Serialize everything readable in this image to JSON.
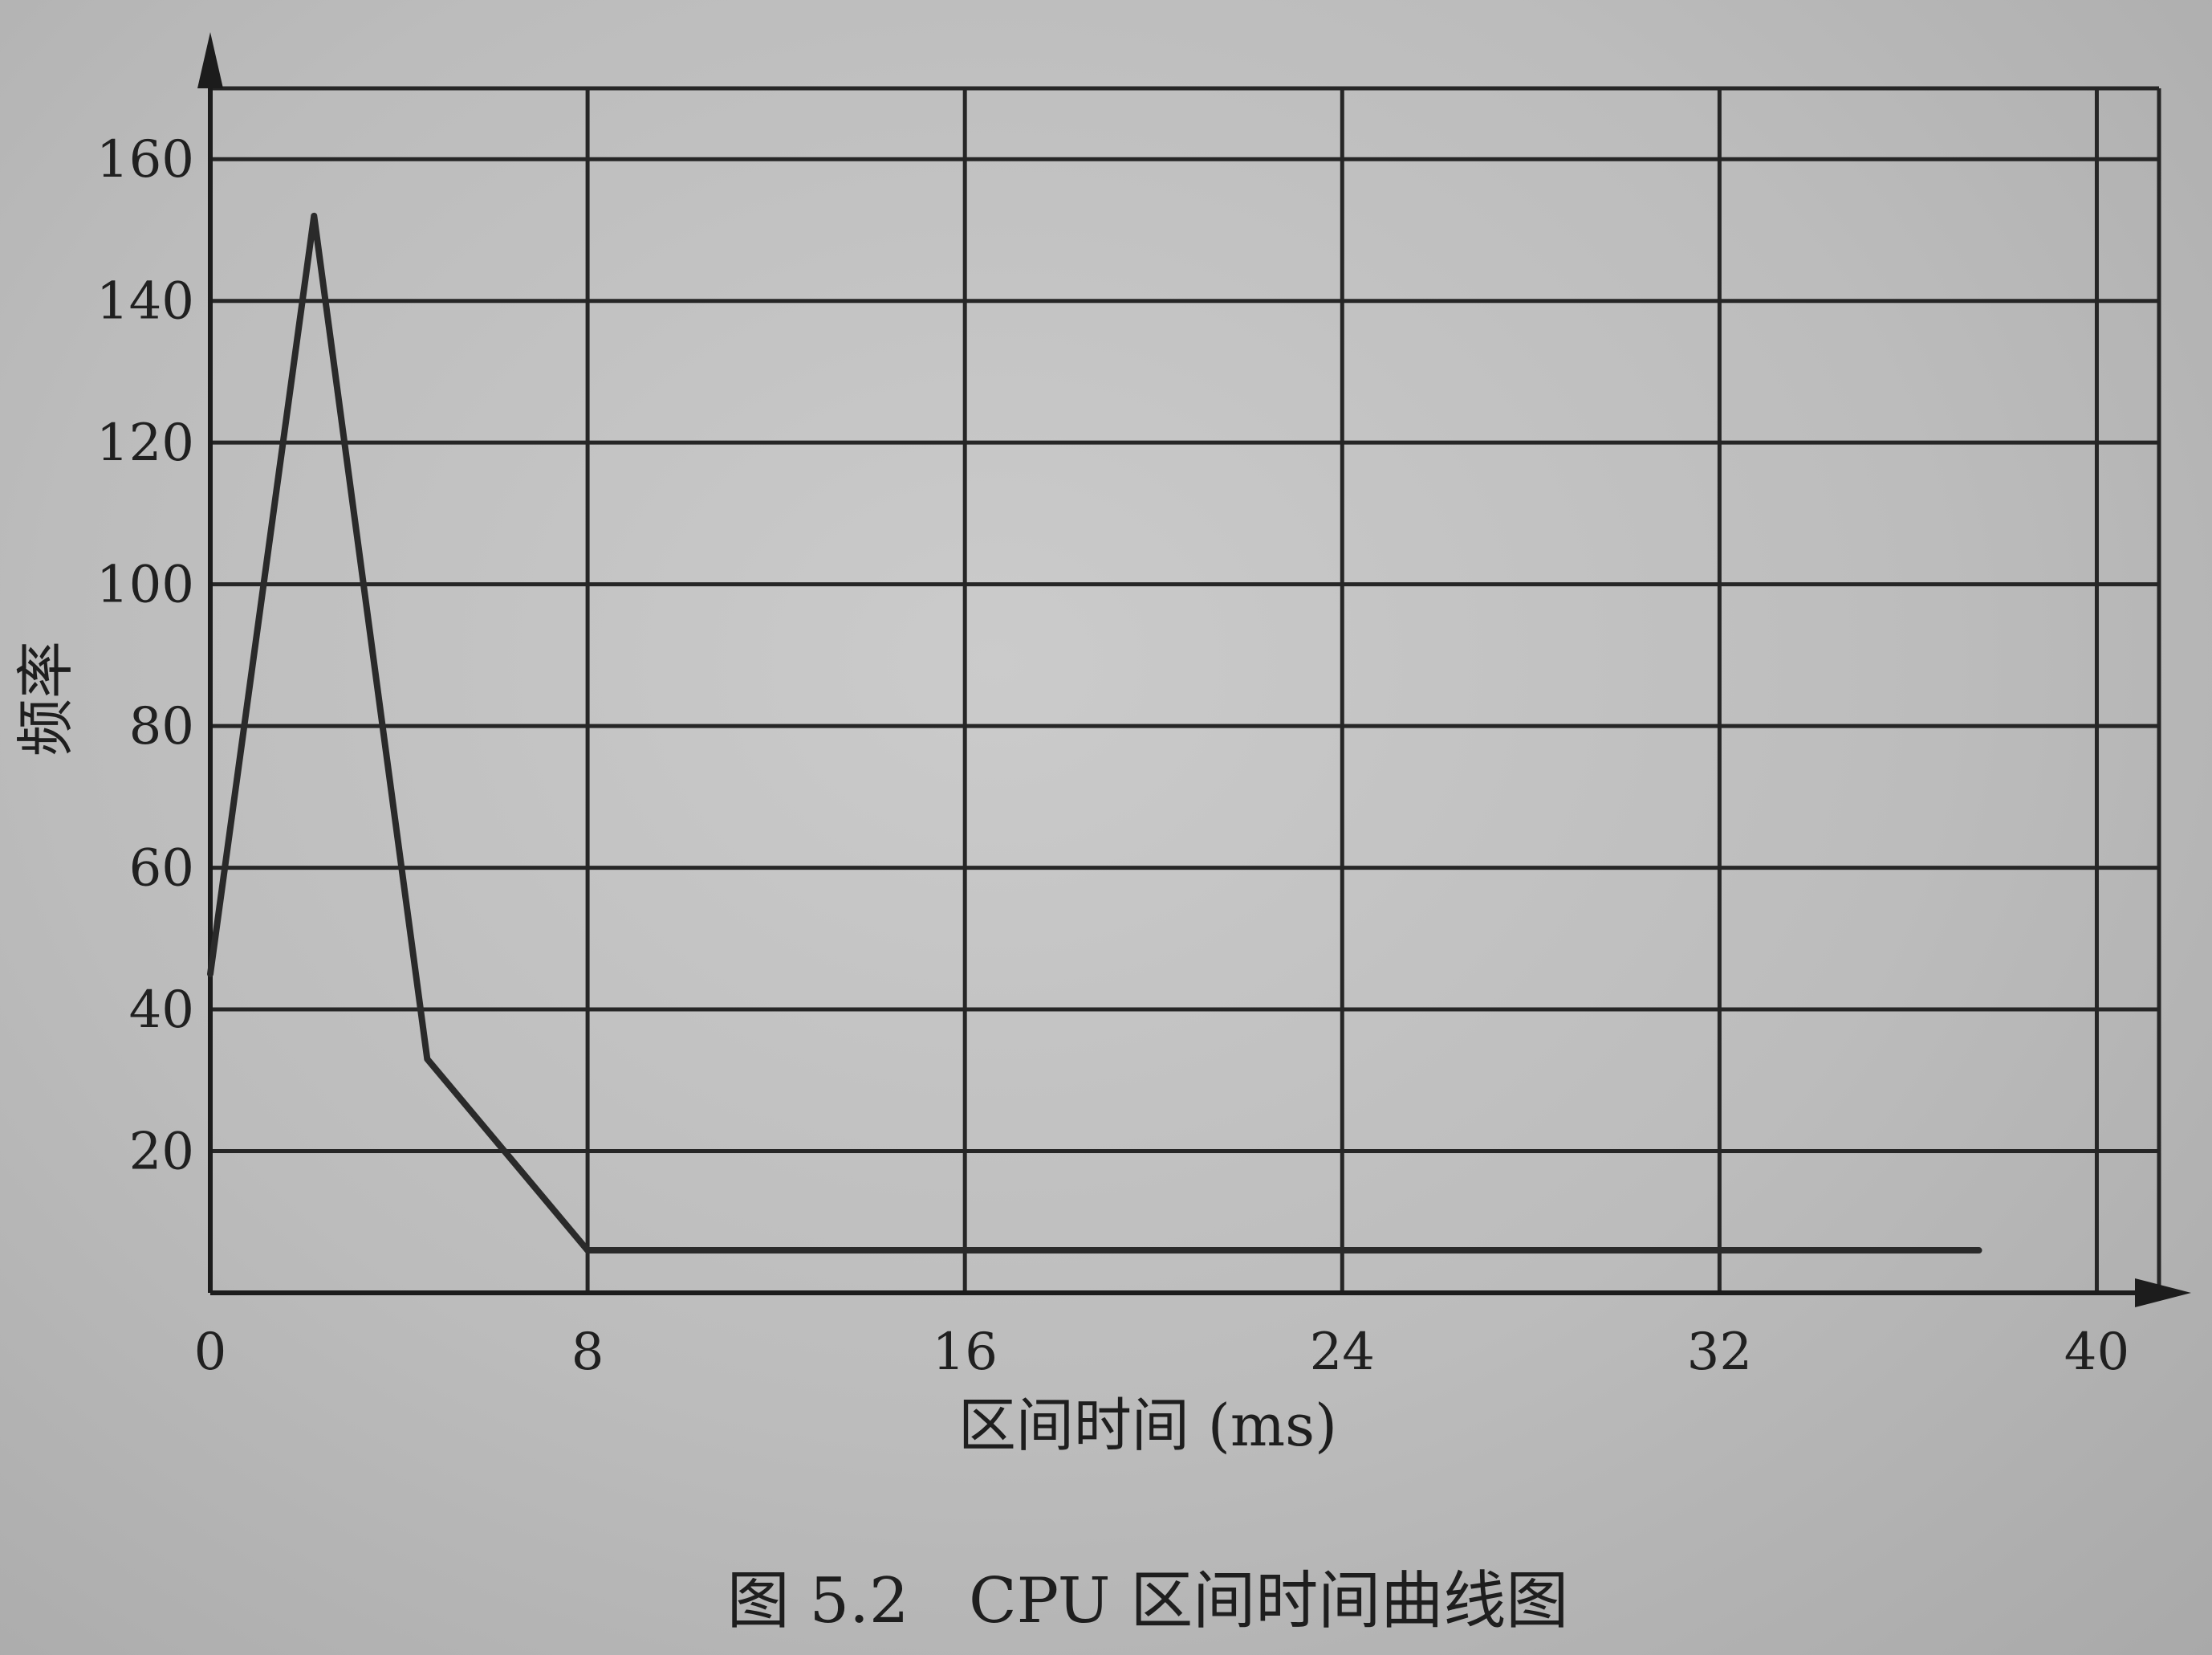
{
  "chart_data": {
    "type": "line",
    "ylabel": "频率",
    "xlabel": "区间时间 (ms)",
    "caption": "图 5.2   CPU 区间时间曲线图",
    "xlim": [
      0,
      42
    ],
    "ylim": [
      0,
      170
    ],
    "x_ticks": [
      0,
      8,
      16,
      24,
      32,
      40
    ],
    "y_ticks": [
      20,
      40,
      60,
      80,
      100,
      120,
      140,
      160
    ],
    "x_gridlines": [
      8,
      16,
      24,
      32,
      40
    ],
    "y_gridlines": [
      20,
      40,
      60,
      80,
      100,
      120,
      140,
      160,
      170
    ],
    "series": [
      {
        "x": [
          0,
          2.2,
          4.6,
          8,
          16,
          24,
          32,
          37.5
        ],
        "y": [
          45,
          152,
          33,
          6,
          6,
          6,
          6,
          6
        ]
      }
    ],
    "grid": true
  },
  "colors": {
    "paper": "#bfbfbf",
    "ink": "#222222"
  }
}
